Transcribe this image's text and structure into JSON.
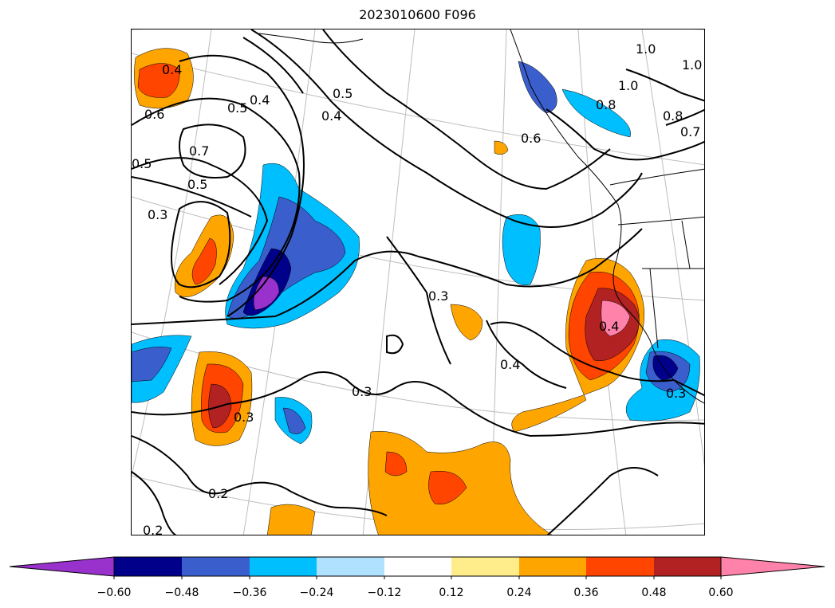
{
  "title": "2023010600 F096",
  "map": {
    "fill_colors": {
      "purple": "#9932cc",
      "navy": "#00008b",
      "royal_blue": "#3a5fcd",
      "deep_sky": "#00bfff",
      "light_blue": "#b0e2ff",
      "white": "#ffffff",
      "light_yellow": "#ffec8b",
      "orange": "#ffa500",
      "orange_red": "#ff4500",
      "firebrick": "#b22222",
      "pink": "#ff82ab"
    },
    "contour_labels": [
      "0.4",
      "0.6",
      "0.5",
      "0.4",
      "0.7",
      "0.5",
      "0.5",
      "0.3",
      "0.5",
      "0.4",
      "0.6",
      "1.0",
      "1.0",
      "1.0",
      "0.8",
      "0.8",
      "0.7",
      "0.3",
      "0.4",
      "0.4",
      "0.3",
      "0.3",
      "0.3",
      "0.2",
      "0.2"
    ]
  },
  "colorbar": {
    "colors": [
      "#9932cc",
      "#00008b",
      "#3a5fcd",
      "#00bfff",
      "#b0e2ff",
      "#ffffff",
      "#ffec8b",
      "#ffa500",
      "#ff4500",
      "#b22222",
      "#ff82ab"
    ],
    "tick_labels": [
      "−0.60",
      "−0.48",
      "−0.36",
      "−0.24",
      "−0.12",
      "0.12",
      "0.24",
      "0.36",
      "0.48",
      "0.60"
    ],
    "extend": "both"
  }
}
